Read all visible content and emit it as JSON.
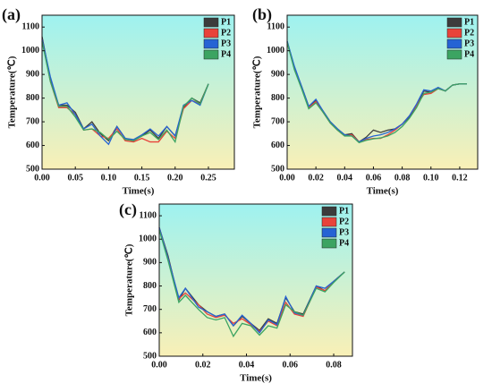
{
  "chart_data": [
    {
      "type": "line",
      "panel_label": "(a)",
      "x_label": "Time(s)",
      "y_label": "Temperature(℃)",
      "x": [
        0,
        0.0125,
        0.025,
        0.0375,
        0.05,
        0.0625,
        0.075,
        0.0875,
        0.1,
        0.1125,
        0.125,
        0.1375,
        0.15,
        0.1625,
        0.175,
        0.1875,
        0.2,
        0.2125,
        0.225,
        0.2375,
        0.25
      ],
      "series": [
        {
          "name": "P1",
          "color": "#3c3c3c",
          "values": [
            1060,
            880,
            770,
            770,
            740,
            670,
            700,
            650,
            620,
            680,
            630,
            620,
            640,
            665,
            630,
            680,
            640,
            760,
            800,
            780,
            860
          ]
        },
        {
          "name": "P2",
          "color": "#e8433a",
          "values": [
            1050,
            870,
            760,
            760,
            730,
            665,
            670,
            640,
            630,
            670,
            620,
            615,
            630,
            615,
            615,
            660,
            630,
            755,
            790,
            775,
            860
          ]
        },
        {
          "name": "P3",
          "color": "#2563d4",
          "values": [
            1050,
            890,
            770,
            780,
            730,
            670,
            690,
            640,
            605,
            680,
            630,
            625,
            645,
            670,
            640,
            680,
            640,
            770,
            790,
            770,
            860
          ]
        },
        {
          "name": "P4",
          "color": "#3ca462",
          "values": [
            1040,
            870,
            765,
            765,
            720,
            665,
            670,
            655,
            625,
            660,
            625,
            620,
            640,
            655,
            625,
            665,
            615,
            765,
            800,
            775,
            860
          ]
        }
      ],
      "xlim": [
        0,
        0.289
      ],
      "ylim": [
        500,
        1150
      ],
      "xticks": [
        {
          "value": 0,
          "label": "0.00"
        },
        {
          "value": 0.05,
          "label": "0.05"
        },
        {
          "value": 0.1,
          "label": "0.10"
        },
        {
          "value": 0.15,
          "label": "0.15"
        },
        {
          "value": 0.2,
          "label": "0.20"
        },
        {
          "value": 0.25,
          "label": "0.25"
        }
      ],
      "yticks": [
        500,
        600,
        700,
        800,
        900,
        1000,
        1100
      ],
      "legend": "upper right"
    },
    {
      "type": "line",
      "panel_label": "(b)",
      "x_label": "Time(s)",
      "y_label": "Temperature(℃)",
      "x": [
        0,
        0.005,
        0.01,
        0.015,
        0.02,
        0.025,
        0.03,
        0.035,
        0.04,
        0.045,
        0.05,
        0.055,
        0.06,
        0.065,
        0.07,
        0.075,
        0.08,
        0.085,
        0.09,
        0.095,
        0.1,
        0.105,
        0.11,
        0.115,
        0.12,
        0.125
      ],
      "series": [
        {
          "name": "P1",
          "color": "#3c3c3c",
          "values": [
            1040,
            930,
            850,
            765,
            790,
            745,
            700,
            670,
            645,
            650,
            615,
            635,
            665,
            655,
            665,
            670,
            690,
            720,
            770,
            830,
            825,
            845,
            830,
            855,
            860,
            860
          ]
        },
        {
          "name": "P2",
          "color": "#e8433a",
          "values": [
            1035,
            925,
            845,
            760,
            785,
            740,
            695,
            665,
            640,
            645,
            615,
            625,
            630,
            630,
            645,
            665,
            690,
            725,
            770,
            815,
            820,
            840,
            830,
            855,
            860,
            860
          ]
        },
        {
          "name": "P3",
          "color": "#2563d4",
          "values": [
            1040,
            935,
            850,
            765,
            795,
            745,
            700,
            670,
            645,
            640,
            615,
            630,
            640,
            645,
            655,
            670,
            690,
            725,
            775,
            835,
            830,
            845,
            830,
            855,
            860,
            860
          ]
        },
        {
          "name": "P4",
          "color": "#3ca462",
          "values": [
            1035,
            920,
            840,
            755,
            780,
            740,
            695,
            665,
            640,
            640,
            612,
            622,
            628,
            632,
            640,
            655,
            680,
            715,
            760,
            820,
            825,
            840,
            830,
            855,
            860,
            860
          ]
        }
      ],
      "xlim": [
        0,
        0.1325
      ],
      "ylim": [
        500,
        1150
      ],
      "xticks": [
        {
          "value": 0,
          "label": "0.00"
        },
        {
          "value": 0.02,
          "label": "0.02"
        },
        {
          "value": 0.04,
          "label": "0.04"
        },
        {
          "value": 0.06,
          "label": "0.06"
        },
        {
          "value": 0.08,
          "label": "0.08"
        },
        {
          "value": 0.1,
          "label": "0.10"
        },
        {
          "value": 0.12,
          "label": "0.12"
        }
      ],
      "yticks": [
        500,
        600,
        700,
        800,
        900,
        1000,
        1100
      ],
      "legend": "upper right"
    },
    {
      "type": "line",
      "panel_label": "(c)",
      "x_label": "Time(s)",
      "y_label": "Temperature(℃)",
      "x": [
        0,
        0.004,
        0.009,
        0.012,
        0.018,
        0.022,
        0.026,
        0.03,
        0.034,
        0.038,
        0.042,
        0.046,
        0.05,
        0.054,
        0.058,
        0.062,
        0.066,
        0.072,
        0.076,
        0.08,
        0.085
      ],
      "series": [
        {
          "name": "P1",
          "color": "#3c3c3c",
          "values": [
            1050,
            930,
            740,
            790,
            720,
            690,
            670,
            680,
            630,
            670,
            640,
            610,
            660,
            640,
            750,
            690,
            680,
            800,
            780,
            820,
            860
          ]
        },
        {
          "name": "P2",
          "color": "#e8433a",
          "values": [
            1050,
            920,
            745,
            770,
            720,
            680,
            665,
            675,
            640,
            660,
            635,
            605,
            650,
            630,
            730,
            680,
            670,
            795,
            780,
            820,
            860
          ]
        },
        {
          "name": "P3",
          "color": "#2563d4",
          "values": [
            1050,
            920,
            750,
            790,
            710,
            690,
            670,
            680,
            630,
            675,
            640,
            600,
            655,
            635,
            755,
            685,
            675,
            800,
            790,
            820,
            860
          ]
        },
        {
          "name": "P4",
          "color": "#3ca462",
          "values": [
            1040,
            910,
            730,
            760,
            700,
            665,
            655,
            665,
            585,
            640,
            630,
            590,
            630,
            620,
            720,
            690,
            675,
            790,
            775,
            815,
            860
          ]
        }
      ],
      "xlim": [
        0,
        0.0886
      ],
      "ylim": [
        500,
        1150
      ],
      "xticks": [
        {
          "value": 0,
          "label": "0.00"
        },
        {
          "value": 0.02,
          "label": "0.02"
        },
        {
          "value": 0.04,
          "label": "0.04"
        },
        {
          "value": 0.06,
          "label": "0.06"
        },
        {
          "value": 0.08,
          "label": "0.08"
        }
      ],
      "yticks": [
        500,
        600,
        700,
        800,
        900,
        1000,
        1100
      ],
      "legend": "upper right"
    }
  ]
}
